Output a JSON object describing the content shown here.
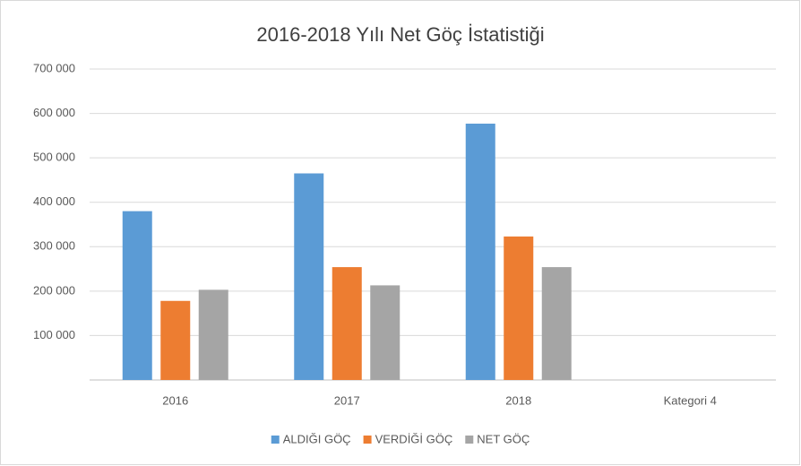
{
  "chart_data": {
    "type": "bar",
    "title": "2016-2018 Yılı Net Göç İstatistiği",
    "categories": [
      "2016",
      "2017",
      "2018",
      "Kategori 4"
    ],
    "series": [
      {
        "name": "ALDIĞI GÖÇ",
        "color": "#5b9bd5",
        "values": [
          380000,
          465000,
          577000,
          null
        ]
      },
      {
        "name": "VERDİĞİ GÖÇ",
        "color": "#ed7d31",
        "values": [
          178000,
          254000,
          323000,
          null
        ]
      },
      {
        "name": "NET GÖÇ",
        "color": "#a5a5a5",
        "values": [
          203000,
          213000,
          254000,
          null
        ]
      }
    ],
    "ylim": [
      0,
      700000
    ],
    "yticks": [
      {
        "value": 100000,
        "label": "100 000"
      },
      {
        "value": 200000,
        "label": "200 000"
      },
      {
        "value": 300000,
        "label": "300 000"
      },
      {
        "value": 400000,
        "label": "400 000"
      },
      {
        "value": 500000,
        "label": "500 000"
      },
      {
        "value": 600000,
        "label": "600 000"
      },
      {
        "value": 700000,
        "label": "700 000"
      }
    ],
    "grid": true,
    "legend": "bottom"
  }
}
